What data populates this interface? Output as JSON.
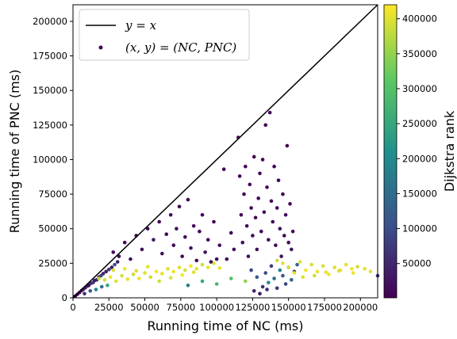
{
  "chart_data": {
    "type": "scatter",
    "xlabel": "Running time of NC (ms)",
    "ylabel": "Running time of PNC (ms)",
    "colorbar_label": "Dijkstra rank",
    "xlim": [
      0,
      212000
    ],
    "ylim": [
      0,
      212000
    ],
    "xticks": [
      0,
      25000,
      50000,
      75000,
      100000,
      125000,
      150000,
      175000,
      200000
    ],
    "yticks": [
      0,
      25000,
      50000,
      75000,
      100000,
      125000,
      150000,
      175000,
      200000
    ],
    "colorbar_ticks": [
      50000,
      100000,
      150000,
      200000,
      250000,
      300000,
      350000,
      400000
    ],
    "colorbar_range": [
      1000,
      420000
    ],
    "colormap": [
      "#440154",
      "#3b528b",
      "#21918c",
      "#5ec962",
      "#fde725"
    ],
    "legend": {
      "position": "upper-left",
      "entries": [
        {
          "kind": "line",
          "label": "y = x",
          "color": "#000000"
        },
        {
          "kind": "marker",
          "label": "(x, y) = (NC, PNC)",
          "color": "#440154"
        }
      ]
    },
    "line_series": {
      "name": "y = x",
      "x": [
        0,
        212000
      ],
      "y": [
        0,
        212000
      ],
      "color": "#000000"
    },
    "series": [
      {
        "name": "(x, y) = (NC, PNC)",
        "points": [
          [
            1500,
            1200,
            4000
          ],
          [
            3000,
            2500,
            8000
          ],
          [
            4500,
            3800,
            12000
          ],
          [
            6000,
            5200,
            20000
          ],
          [
            7000,
            6000,
            30000
          ],
          [
            8500,
            7200,
            25000
          ],
          [
            10000,
            8500,
            40000
          ],
          [
            11000,
            9000,
            15000
          ],
          [
            12500,
            10500,
            60000
          ],
          [
            14000,
            11000,
            80000
          ],
          [
            15000,
            12500,
            30000
          ],
          [
            16500,
            13000,
            45000
          ],
          [
            18000,
            15000,
            20000
          ],
          [
            19500,
            16000,
            90000
          ],
          [
            21000,
            17500,
            50000
          ],
          [
            23000,
            19000,
            35000
          ],
          [
            25000,
            20500,
            70000
          ],
          [
            27000,
            22000,
            25000
          ],
          [
            29000,
            24000,
            100000
          ],
          [
            31000,
            26000,
            40000
          ],
          [
            8000,
            3000,
            60000
          ],
          [
            12000,
            5000,
            120000
          ],
          [
            16000,
            6000,
            200000
          ],
          [
            20000,
            8000,
            150000
          ],
          [
            24000,
            9000,
            250000
          ],
          [
            18000,
            14000,
            380000
          ],
          [
            22000,
            13000,
            390000
          ],
          [
            26000,
            15000,
            410000
          ],
          [
            30000,
            12000,
            400000
          ],
          [
            34000,
            16000,
            395000
          ],
          [
            38000,
            13500,
            405000
          ],
          [
            42000,
            17000,
            385000
          ],
          [
            46000,
            14000,
            410000
          ],
          [
            50000,
            18000,
            400000
          ],
          [
            54000,
            15000,
            390000
          ],
          [
            58000,
            19000,
            415000
          ],
          [
            62000,
            17500,
            405000
          ],
          [
            66000,
            21000,
            398000
          ],
          [
            70000,
            19000,
            410000
          ],
          [
            74000,
            22000,
            400000
          ],
          [
            78000,
            20000,
            395000
          ],
          [
            82000,
            23000,
            412000
          ],
          [
            86000,
            21000,
            400000
          ],
          [
            90000,
            24000,
            390000
          ],
          [
            94000,
            22000,
            405000
          ],
          [
            98000,
            25000,
            400000
          ],
          [
            102000,
            21500,
            410000
          ],
          [
            28000,
            20000,
            395000
          ],
          [
            36000,
            21000,
            410000
          ],
          [
            44000,
            19500,
            400000
          ],
          [
            52000,
            22500,
            405000
          ],
          [
            60000,
            12000,
            390000
          ],
          [
            68000,
            14500,
            400000
          ],
          [
            76000,
            16500,
            412000
          ],
          [
            84000,
            18500,
            400000
          ],
          [
            28000,
            33000,
            5000
          ],
          [
            32000,
            30000,
            12000
          ],
          [
            36000,
            40000,
            8000
          ],
          [
            40000,
            28000,
            20000
          ],
          [
            44000,
            45000,
            6000
          ],
          [
            48000,
            35000,
            15000
          ],
          [
            52000,
            50000,
            10000
          ],
          [
            56000,
            42000,
            30000
          ],
          [
            60000,
            55000,
            4000
          ],
          [
            62000,
            32000,
            18000
          ],
          [
            65000,
            46000,
            9000
          ],
          [
            68000,
            60000,
            14000
          ],
          [
            70000,
            38000,
            7000
          ],
          [
            72000,
            50000,
            22000
          ],
          [
            74000,
            66000,
            5000
          ],
          [
            76000,
            30000,
            12000
          ],
          [
            78000,
            44000,
            16000
          ],
          [
            80000,
            71000,
            6000
          ],
          [
            82000,
            36000,
            25000
          ],
          [
            84000,
            52000,
            8000
          ],
          [
            86000,
            27000,
            11000
          ],
          [
            88000,
            48000,
            13000
          ],
          [
            90000,
            60000,
            7000
          ],
          [
            92000,
            33000,
            20000
          ],
          [
            94000,
            42000,
            9000
          ],
          [
            96000,
            26000,
            15000
          ],
          [
            98000,
            55000,
            6000
          ],
          [
            100000,
            28000,
            10000
          ],
          [
            102000,
            38000,
            18000
          ],
          [
            105000,
            93000,
            4000
          ],
          [
            107000,
            28000,
            12000
          ],
          [
            110000,
            47000,
            8000
          ],
          [
            112000,
            35000,
            16000
          ],
          [
            115000,
            116000,
            5000
          ],
          [
            116000,
            88000,
            7000
          ],
          [
            117000,
            60000,
            10000
          ],
          [
            118000,
            40000,
            15000
          ],
          [
            119000,
            75000,
            6000
          ],
          [
            120000,
            95000,
            9000
          ],
          [
            121000,
            52000,
            12000
          ],
          [
            122000,
            30000,
            20000
          ],
          [
            123000,
            82000,
            8000
          ],
          [
            124000,
            65000,
            11000
          ],
          [
            125000,
            45000,
            14000
          ],
          [
            126000,
            102000,
            5000
          ],
          [
            127000,
            58000,
            9000
          ],
          [
            128000,
            35000,
            18000
          ],
          [
            129000,
            72000,
            7000
          ],
          [
            130000,
            90000,
            10000
          ],
          [
            131000,
            48000,
            13000
          ],
          [
            132000,
            100000,
            6000
          ],
          [
            133000,
            62000,
            15000
          ],
          [
            134000,
            125000,
            4000
          ],
          [
            135000,
            80000,
            8000
          ],
          [
            136000,
            42000,
            16000
          ],
          [
            137000,
            134000,
            5000
          ],
          [
            138000,
            70000,
            12000
          ],
          [
            139000,
            55000,
            9000
          ],
          [
            140000,
            95000,
            7000
          ],
          [
            141000,
            38000,
            14000
          ],
          [
            142000,
            65000,
            10000
          ],
          [
            143000,
            85000,
            6000
          ],
          [
            144000,
            50000,
            13000
          ],
          [
            145000,
            30000,
            18000
          ],
          [
            146000,
            75000,
            8000
          ],
          [
            147000,
            45000,
            11000
          ],
          [
            148000,
            60000,
            9000
          ],
          [
            149000,
            110000,
            5000
          ],
          [
            150000,
            40000,
            16000
          ],
          [
            151000,
            68000,
            7000
          ],
          [
            152000,
            35000,
            20000
          ],
          [
            153000,
            48000,
            12000
          ],
          [
            124000,
            20000,
            90000
          ],
          [
            128000,
            15000,
            120000
          ],
          [
            132000,
            8000,
            60000
          ],
          [
            134000,
            18000,
            100000
          ],
          [
            136000,
            11000,
            200000
          ],
          [
            138000,
            23000,
            80000
          ],
          [
            140000,
            14000,
            150000
          ],
          [
            142000,
            7000,
            70000
          ],
          [
            144000,
            20000,
            180000
          ],
          [
            146000,
            16000,
            110000
          ],
          [
            148000,
            10000,
            90000
          ],
          [
            150000,
            22000,
            160000
          ],
          [
            152000,
            13000,
            130000
          ],
          [
            154000,
            19000,
            75000
          ],
          [
            156000,
            24000,
            140000
          ],
          [
            126000,
            5000,
            40000
          ],
          [
            130000,
            3000,
            30000
          ],
          [
            135000,
            6000,
            50000
          ],
          [
            150000,
            22000,
            395000
          ],
          [
            154000,
            18000,
            405000
          ],
          [
            158000,
            26000,
            400000
          ],
          [
            162000,
            20000,
            410000
          ],
          [
            166000,
            24000,
            395000
          ],
          [
            170000,
            19000,
            405000
          ],
          [
            174000,
            23000,
            400000
          ],
          [
            178000,
            17000,
            410000
          ],
          [
            182000,
            22000,
            398000
          ],
          [
            186000,
            20000,
            405000
          ],
          [
            190000,
            24000,
            400000
          ],
          [
            194000,
            21000,
            410000
          ],
          [
            198000,
            22500,
            395000
          ],
          [
            160000,
            15000,
            400000
          ],
          [
            168000,
            16000,
            390000
          ],
          [
            176000,
            18500,
            405000
          ],
          [
            185000,
            19500,
            400000
          ],
          [
            195000,
            18000,
            410000
          ],
          [
            203000,
            21000,
            405000
          ],
          [
            207000,
            19000,
            400000
          ],
          [
            212000,
            16000,
            60000
          ],
          [
            142000,
            27000,
            390000
          ],
          [
            146000,
            25000,
            400000
          ],
          [
            120000,
            12000,
            350000
          ],
          [
            110000,
            14000,
            300000
          ],
          [
            100000,
            10000,
            280000
          ],
          [
            90000,
            12000,
            250000
          ],
          [
            80000,
            9000,
            180000
          ]
        ]
      }
    ]
  }
}
